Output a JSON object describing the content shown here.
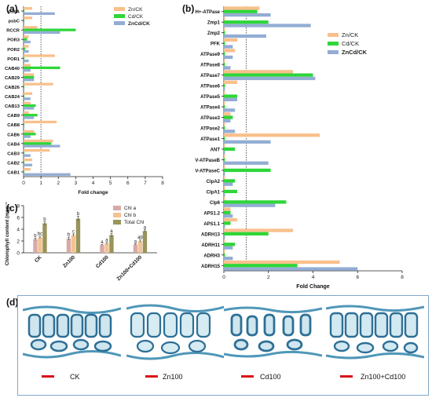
{
  "panel_labels": {
    "a": "(a)",
    "b": "(b)",
    "c": "(c)",
    "d": "(d)"
  },
  "colors": {
    "zn": "#f9c08c",
    "cd": "#2fd639",
    "zncd": "#93add3",
    "chla": "#d7aaa8",
    "chlb": "#f4c294",
    "total": "#98955a"
  },
  "micrographs": {
    "labels": [
      "CK",
      "Zn100",
      "Cd100",
      "Zn100+Cd100"
    ],
    "scale_bar_color": "#d8101a"
  },
  "chart_data": [
    {
      "id": "a",
      "type": "bar",
      "orientation": "horizontal",
      "xlabel": "Fold change",
      "ylabel": "",
      "xlim": [
        0,
        8
      ],
      "xticks": [
        0,
        1,
        2,
        3,
        4,
        5,
        6,
        7,
        8
      ],
      "reference_line": 1,
      "legend": "top-right",
      "categories": [
        "psbA",
        "psbC",
        "RCCR",
        "POR3",
        "POR2",
        "POR1",
        "CAB40",
        "CAB29",
        "CAB26",
        "CAB24",
        "CAB13",
        "CAB9",
        "CAB8",
        "CAB6",
        "CAB4",
        "CAB3",
        "CAB2",
        "CAB1"
      ],
      "series": [
        {
          "name": "Zn/CK",
          "values": [
            0.5,
            0.5,
            0.8,
            0.3,
            0.3,
            1.8,
            0.4,
            0.6,
            1.7,
            0.5,
            0.4,
            0.3,
            1.9,
            0.6,
            1.7,
            1.5,
            0.5,
            0.4
          ]
        },
        {
          "name": "Cd/CK",
          "values": [
            0.05,
            0.05,
            3.0,
            0.2,
            0.1,
            0.05,
            2.1,
            0.6,
            0.05,
            0.05,
            0.7,
            0.8,
            0.05,
            0.7,
            1.6,
            0.05,
            0.05,
            0.05
          ]
        },
        {
          "name": "ZnCd/CK",
          "values": [
            1.8,
            0.05,
            2.1,
            0.4,
            0.3,
            0.3,
            0.4,
            0.6,
            0.05,
            0.4,
            0.6,
            0.6,
            0.05,
            0.4,
            2.1,
            0.4,
            0.5,
            2.7
          ]
        }
      ]
    },
    {
      "id": "b",
      "type": "bar",
      "orientation": "horizontal",
      "xlabel": "Fold Change",
      "ylabel": "",
      "xlim": [
        0,
        8
      ],
      "xticks": [
        0,
        2,
        4,
        6,
        8
      ],
      "reference_line": 1,
      "legend": "top-right",
      "categories": [
        "H+-ATPase",
        "Zmp1",
        "Zmp2",
        "PFK",
        "ATPase9",
        "ATPase8",
        "ATPase7",
        "ATPase6",
        "ATPase5",
        "ATPase4",
        "ATPase3",
        "ATPase2",
        "ATPase1",
        "ANT",
        "V-ATPaseB",
        "V-ATPaseC",
        "ClpA2",
        "ClpA1",
        "Clp6",
        "APS1.2",
        "APS1.1",
        "ADRH13",
        "ADRH11",
        "ADRH3",
        "ADRH15"
      ],
      "series": [
        {
          "name": "Zn/CK",
          "values": [
            1.6,
            0.05,
            0.05,
            0.6,
            0.5,
            0.05,
            3.1,
            0.6,
            0.05,
            0.05,
            0.3,
            0.05,
            4.3,
            0.05,
            0.05,
            0.05,
            0.05,
            0.05,
            0.05,
            0.3,
            0.6,
            3.1,
            0.05,
            0.05,
            5.2
          ]
        },
        {
          "name": "Cd/CK",
          "values": [
            1.5,
            2.0,
            0.05,
            0.05,
            0.05,
            0.05,
            4.0,
            0.05,
            0.6,
            0.05,
            0.4,
            0.05,
            0.05,
            0.5,
            0.05,
            2.1,
            0.5,
            0.6,
            2.8,
            0.3,
            0.3,
            2.0,
            0.5,
            0.05,
            3.3
          ]
        },
        {
          "name": "ZnCd/CK",
          "values": [
            2.1,
            3.9,
            1.9,
            0.4,
            0.4,
            0.3,
            4.1,
            0.05,
            0.6,
            0.5,
            0.3,
            0.5,
            2.1,
            0.05,
            2.0,
            0.05,
            0.4,
            0.05,
            2.3,
            0.4,
            0.05,
            0.05,
            0.4,
            0.4,
            6.0
          ]
        }
      ]
    },
    {
      "id": "c",
      "type": "bar",
      "orientation": "vertical",
      "xlabel": "",
      "ylabel": "Chlorophyll content (mgg⁻¹FW)",
      "ylim": [
        0,
        8
      ],
      "yticks": [
        0,
        2,
        4,
        6,
        8
      ],
      "legend": "top-right",
      "categories": [
        "CK",
        "Zn100",
        "Cd100",
        "Zn100+Cd100"
      ],
      "series": [
        {
          "name": "Chl a",
          "values": [
            2.3,
            2.4,
            1.3,
            1.4
          ],
          "errors": [
            0.2,
            0.25,
            0.1,
            0.1
          ],
          "labels": [
            "b",
            "b",
            "a",
            "a"
          ]
        },
        {
          "name": "Chl b",
          "values": [
            2.6,
            3.0,
            1.6,
            2.0
          ],
          "errors": [
            0.2,
            0.2,
            0.15,
            0.2
          ],
          "labels": [
            "bc",
            "c",
            "a",
            "ab"
          ]
        },
        {
          "name": "Total Chl",
          "values": [
            5.0,
            5.8,
            3.0,
            3.7
          ],
          "errors": [
            0.3,
            0.4,
            0.3,
            0.2
          ],
          "labels": [
            "b",
            "b",
            "a",
            "a"
          ]
        }
      ]
    }
  ]
}
